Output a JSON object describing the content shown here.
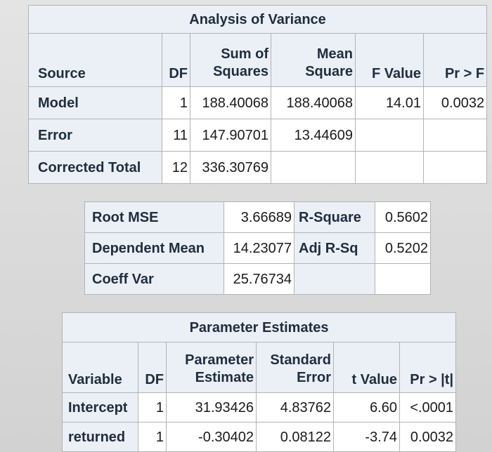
{
  "anova": {
    "title": "Analysis of Variance",
    "headers": {
      "source": "Source",
      "df": "DF",
      "ss_line1": "Sum of",
      "ss_line2": "Squares",
      "ms_line1": "Mean",
      "ms_line2": "Square",
      "f": "F Value",
      "p": "Pr > F"
    },
    "rows": [
      {
        "source": "Model",
        "df": "1",
        "ss": "188.40068",
        "ms": "188.40068",
        "f": "14.01",
        "p": "0.0032"
      },
      {
        "source": "Error",
        "df": "11",
        "ss": "147.90701",
        "ms": "13.44609",
        "f": "",
        "p": ""
      },
      {
        "source": "Corrected Total",
        "df": "12",
        "ss": "336.30769",
        "ms": "",
        "f": "",
        "p": ""
      }
    ]
  },
  "fit": {
    "rows": [
      {
        "label1": "Root MSE",
        "value1": "3.66689",
        "label2": "R-Square",
        "value2": "0.5602"
      },
      {
        "label1": "Dependent Mean",
        "value1": "14.23077",
        "label2": "Adj R-Sq",
        "value2": "0.5202"
      },
      {
        "label1": "Coeff Var",
        "value1": "25.76734",
        "label2": "",
        "value2": ""
      }
    ]
  },
  "params": {
    "title": "Parameter Estimates",
    "headers": {
      "variable": "Variable",
      "df": "DF",
      "est_line1": "Parameter",
      "est_line2": "Estimate",
      "se_line1": "Standard",
      "se_line2": "Error",
      "t": "t Value",
      "p": "Pr > |t|"
    },
    "rows": [
      {
        "variable": "Intercept",
        "df": "1",
        "estimate": "31.93426",
        "se": "4.83762",
        "t": "6.60",
        "p": "<.0001"
      },
      {
        "variable": "returned",
        "df": "1",
        "estimate": "-0.30402",
        "se": "0.08122",
        "t": "-3.74",
        "p": "0.0032"
      }
    ]
  }
}
